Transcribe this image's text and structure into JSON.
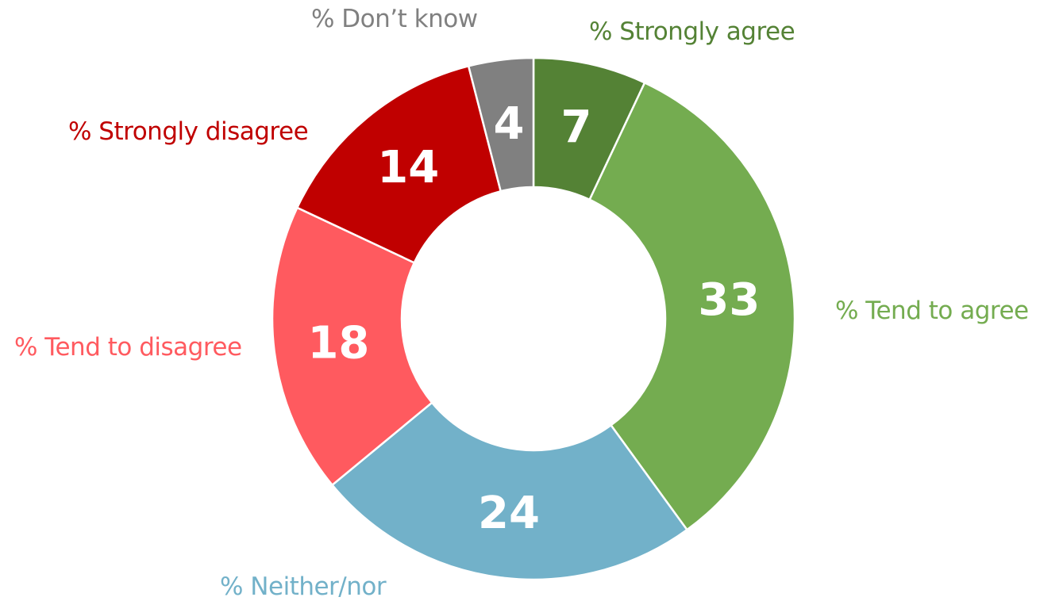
{
  "chart_data": {
    "type": "pie",
    "variant": "donut",
    "slices": [
      {
        "label": "% Strongly agree",
        "value": 7,
        "color": "#548235"
      },
      {
        "label": "% Tend to agree",
        "value": 33,
        "color": "#74AC50"
      },
      {
        "label": "% Neither/nor",
        "value": 24,
        "color": "#72B1C9"
      },
      {
        "label": "% Tend to disagree",
        "value": 18,
        "color": "#FF5A5F"
      },
      {
        "label": "% Strongly disagree",
        "value": 14,
        "color": "#C00000"
      },
      {
        "label": "% Don’t know",
        "value": 4,
        "color": "#808080"
      }
    ]
  }
}
